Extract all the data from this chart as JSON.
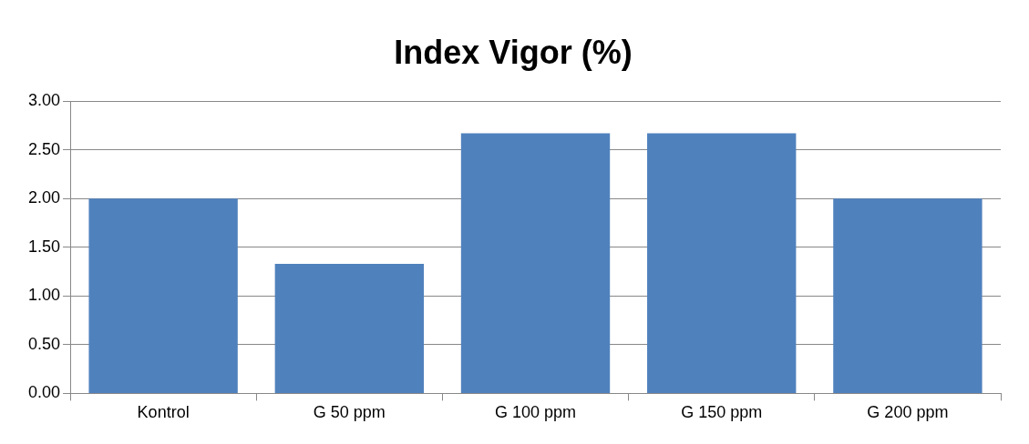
{
  "chart_data": {
    "type": "bar",
    "title": "Index Vigor (%)",
    "categories": [
      "Kontrol",
      "G 50 ppm",
      "G 100 ppm",
      "G 150 ppm",
      "G 200 ppm"
    ],
    "values": [
      2.0,
      1.33,
      2.67,
      2.67,
      2.0
    ],
    "color": "#4f81bd",
    "ylim": [
      0,
      3
    ],
    "yticks": [
      {
        "value": 0,
        "label": "0.00"
      },
      {
        "value": 0.5,
        "label": "0.50"
      },
      {
        "value": 1,
        "label": "1.00"
      },
      {
        "value": 1.5,
        "label": "1.50"
      },
      {
        "value": 2,
        "label": "2.00"
      },
      {
        "value": 2.5,
        "label": "2.50"
      },
      {
        "value": 3,
        "label": "3.00"
      }
    ],
    "grid": "y"
  }
}
